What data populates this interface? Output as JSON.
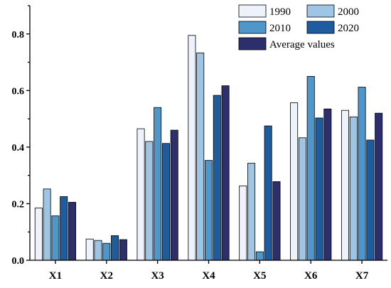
{
  "chart_data": {
    "type": "bar",
    "title": "",
    "xlabel": "",
    "ylabel": "",
    "categories": [
      "X1",
      "X2",
      "X3",
      "X4",
      "X5",
      "X6",
      "X7"
    ],
    "ylim": [
      0,
      0.9
    ],
    "yticks": [
      0.0,
      0.2,
      0.4,
      0.6,
      0.8
    ],
    "ytick_labels": [
      "0.0",
      "0.2",
      "0.4",
      "0.6",
      "0.8"
    ],
    "grid": false,
    "legend_placement": "top-right",
    "series": [
      {
        "name": "1990",
        "color": "#eef3fb",
        "values": [
          0.185,
          0.075,
          0.465,
          0.795,
          0.263,
          0.557,
          0.53
        ]
      },
      {
        "name": "2000",
        "color": "#9ec6e4",
        "values": [
          0.252,
          0.07,
          0.42,
          0.733,
          0.343,
          0.433,
          0.507
        ]
      },
      {
        "name": "2010",
        "color": "#4f96cb",
        "values": [
          0.157,
          0.06,
          0.54,
          0.353,
          0.03,
          0.65,
          0.612
        ]
      },
      {
        "name": "2020",
        "color": "#1c5c9f",
        "values": [
          0.225,
          0.087,
          0.413,
          0.583,
          0.475,
          0.503,
          0.425
        ]
      },
      {
        "name": "Average values",
        "color": "#2d2f6c",
        "values": [
          0.205,
          0.073,
          0.46,
          0.617,
          0.278,
          0.535,
          0.52
        ]
      }
    ]
  }
}
